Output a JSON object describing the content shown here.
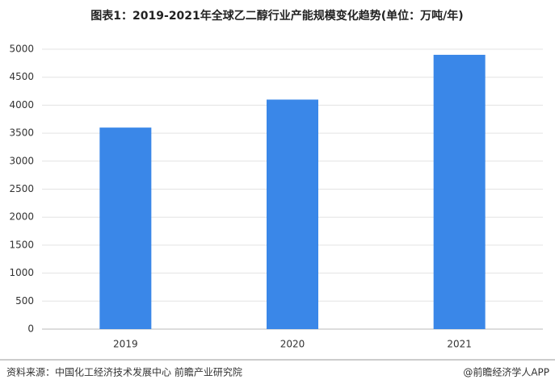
{
  "chart_data": {
    "type": "bar",
    "title": "图表1：2019-2021年全球乙二醇行业产能规模变化趋势(单位：万吨/年)",
    "categories": [
      "2019",
      "2020",
      "2021"
    ],
    "values": [
      3600,
      4100,
      4900
    ],
    "color": "#3a87e8",
    "ylim": [
      0,
      5000
    ],
    "yticks": [
      0,
      500,
      1000,
      1500,
      2000,
      2500,
      3000,
      3500,
      4000,
      4500,
      5000
    ],
    "grid": true,
    "source": "资料来源：中国化工经济技术发展中心 前瞻产业研究院",
    "credit": "@前瞻经济学人APP"
  }
}
